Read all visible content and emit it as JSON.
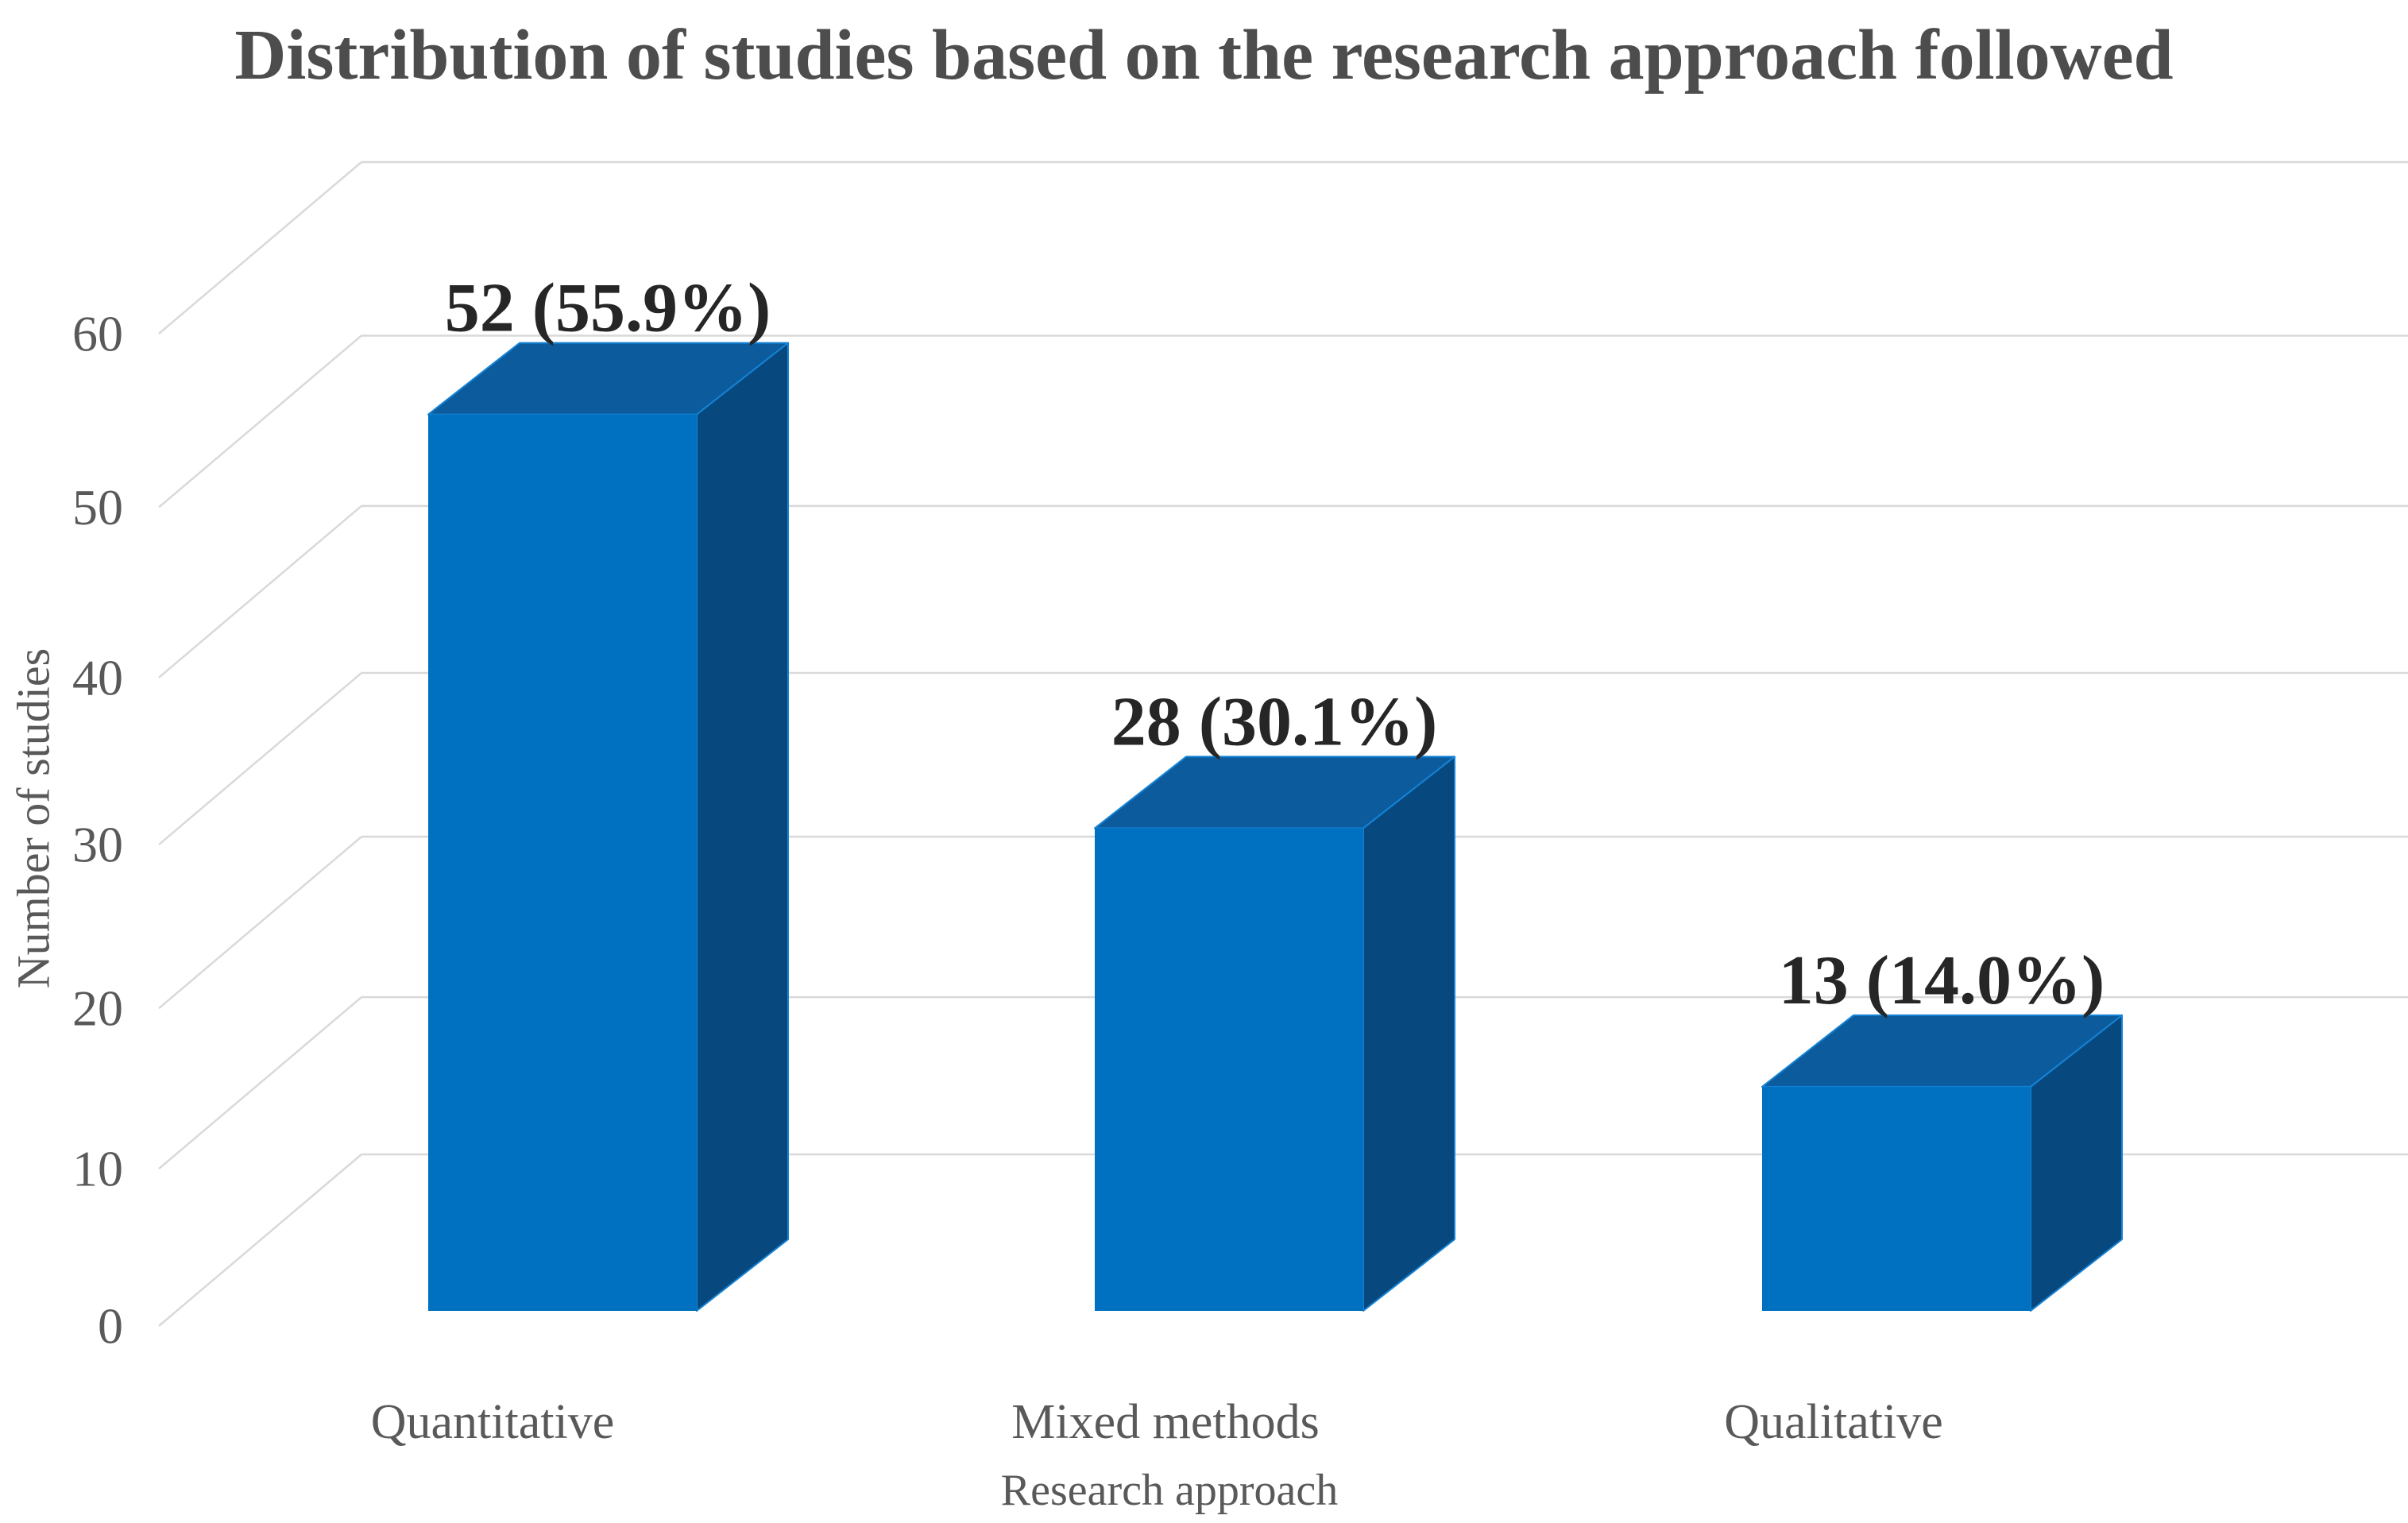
{
  "figure": {
    "background": "#FFFFFF"
  },
  "chart_data": {
    "type": "bar",
    "subtype": "3d-column",
    "title": "Distribution of studies based on the research approach followed",
    "categories": [
      "Quantitative",
      "Mixed methods",
      "Qualitative"
    ],
    "values": [
      52,
      28,
      13
    ],
    "percentages": [
      55.9,
      30.1,
      14.0
    ],
    "data_labels": [
      "52 (55.9%)",
      "28 (30.1%)",
      "13 (14.0%)"
    ],
    "xlabel": "Research approach",
    "ylabel": "Number of studies",
    "yticks": [
      0,
      10,
      20,
      30,
      40,
      50,
      60
    ],
    "ylim": [
      0,
      60
    ],
    "grid": true,
    "legend": "none",
    "colors": {
      "bar_front": "#0070C0",
      "bar_top": "#0B5B9D",
      "bar_side": "#07497F",
      "bar_edge": "#1583D6",
      "gridline": "#D9D9D9",
      "title_text": "#4D4D4D",
      "axis_text": "#595959",
      "data_label_text": "#262626",
      "background": "#FFFFFF"
    }
  }
}
